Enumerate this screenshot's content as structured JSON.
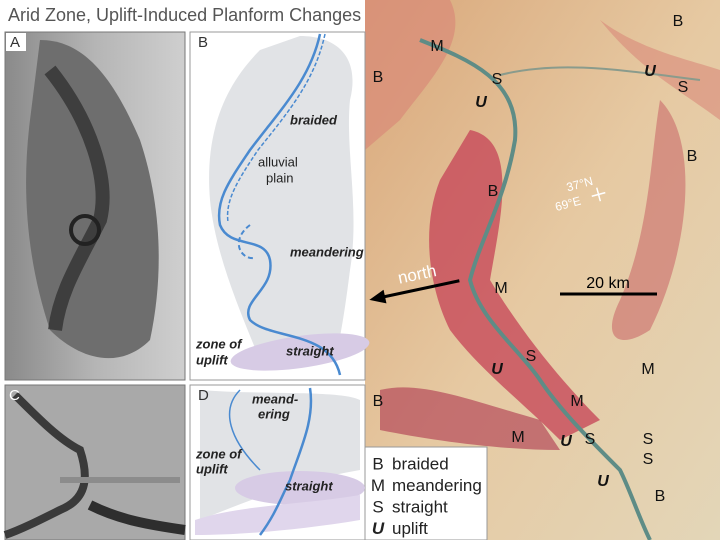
{
  "title": "Arid Zone, Uplift-Induced Planform Changes",
  "panels": {
    "a": {
      "letter": "A"
    },
    "b": {
      "letter": "B",
      "braided": "braided",
      "plain": [
        "alluvial",
        "plain"
      ],
      "meandering": "meandering",
      "uplift": [
        "zone of",
        "uplift"
      ],
      "straight": "straight"
    },
    "c": {
      "letter": "C"
    },
    "d": {
      "letter": "D",
      "meandering": [
        "meand-",
        "ering"
      ],
      "uplift": [
        "zone of",
        "uplift"
      ],
      "straight": "straight"
    }
  },
  "map": {
    "labels": [
      "M",
      "B",
      "U",
      "S",
      "B",
      "S",
      "U",
      "B",
      "B",
      "M",
      "S",
      "U",
      "M",
      "B",
      "M",
      "M",
      "U",
      "S",
      "S",
      "S",
      "U",
      "B"
    ],
    "latitude": "37°N",
    "longitude": "69°E",
    "north": "north",
    "scale": "20 km"
  },
  "legend": [
    {
      "key": "B",
      "text": "braided"
    },
    {
      "key": "M",
      "text": "meandering"
    },
    {
      "key": "S",
      "text": "straight"
    },
    {
      "key": "U",
      "text": "uplift"
    }
  ]
}
